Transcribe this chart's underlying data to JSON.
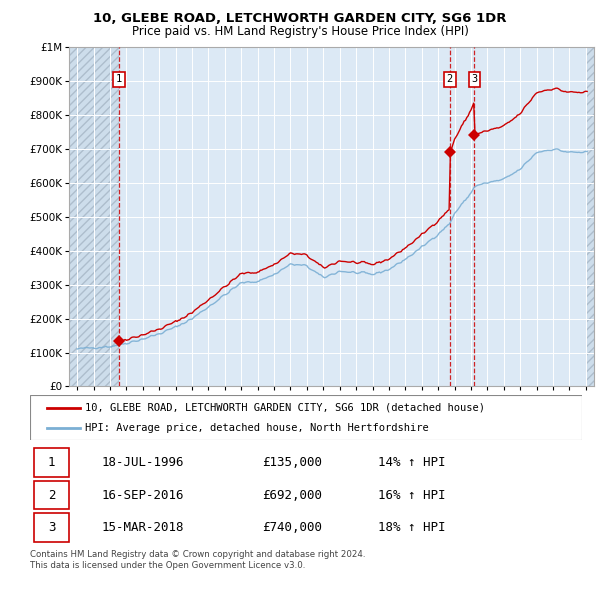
{
  "title1": "10, GLEBE ROAD, LETCHWORTH GARDEN CITY, SG6 1DR",
  "title2": "Price paid vs. HM Land Registry's House Price Index (HPI)",
  "yticks": [
    0,
    100000,
    200000,
    300000,
    400000,
    500000,
    600000,
    700000,
    800000,
    900000,
    1000000
  ],
  "ytick_labels": [
    "£0",
    "£100K",
    "£200K",
    "£300K",
    "£400K",
    "£500K",
    "£600K",
    "£700K",
    "£800K",
    "£900K",
    "£1M"
  ],
  "xmin": 1993.5,
  "xmax": 2025.5,
  "ymin": 0,
  "ymax": 1000000,
  "sale_dates": [
    1996.54,
    2016.71,
    2018.21
  ],
  "sale_prices": [
    135000,
    692000,
    740000
  ],
  "sale_labels": [
    "1",
    "2",
    "3"
  ],
  "hpi_color": "#7bafd4",
  "sale_color": "#cc0000",
  "legend1_text": "10, GLEBE ROAD, LETCHWORTH GARDEN CITY, SG6 1DR (detached house)",
  "legend2_text": "HPI: Average price, detached house, North Hertfordshire",
  "table_data": [
    {
      "num": "1",
      "date": "18-JUL-1996",
      "price": "£135,000",
      "hpi": "14% ↑ HPI"
    },
    {
      "num": "2",
      "date": "16-SEP-2016",
      "price": "£692,000",
      "hpi": "16% ↑ HPI"
    },
    {
      "num": "3",
      "date": "15-MAR-2018",
      "price": "£740,000",
      "hpi": "18% ↑ HPI"
    }
  ],
  "footnote1": "Contains HM Land Registry data © Crown copyright and database right 2024.",
  "footnote2": "This data is licensed under the Open Government Licence v3.0.",
  "plot_bg_color": "#dce9f5"
}
